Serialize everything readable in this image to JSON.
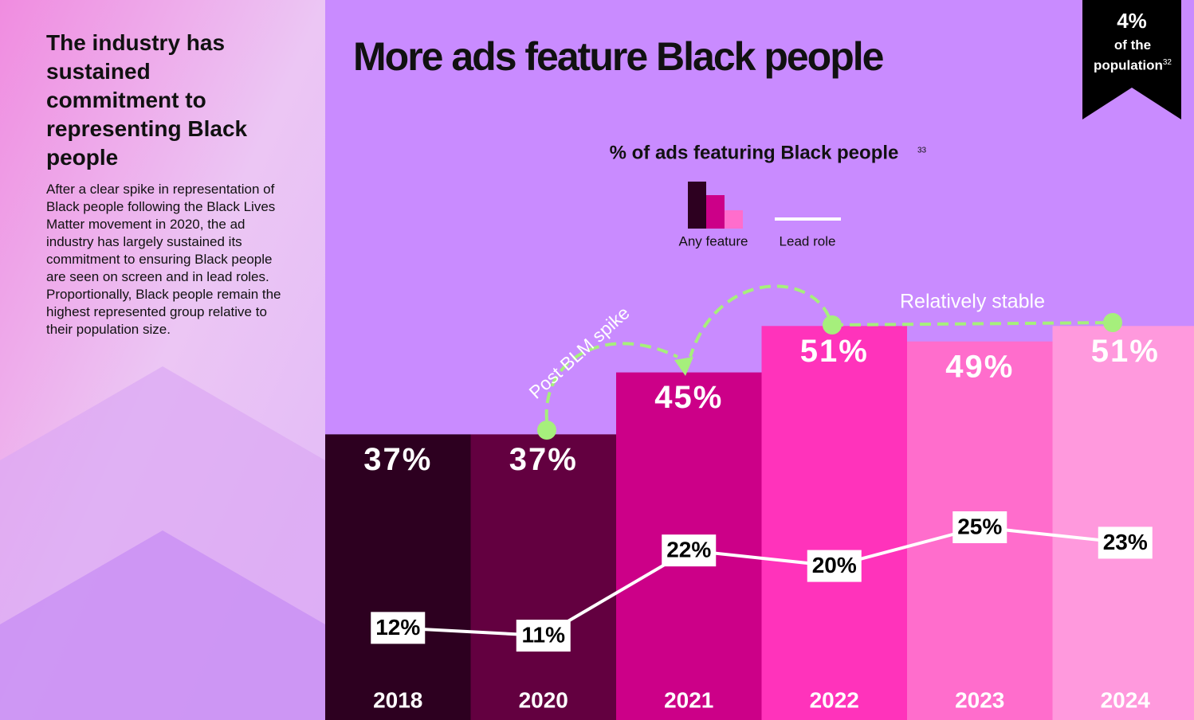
{
  "sidebar": {
    "heading": "The industry has sustained commitment to representing Black people",
    "body": "After a clear spike in representation of Black people following the Black Lives Matter movement in 2020, the ad industry has largely sustained its commitment to ensuring Black people are seen on screen and in lead roles. Proportionally, Black people remain the highest represented group relative to their population size."
  },
  "badge": {
    "value": "4%",
    "label": "of the population",
    "footnote": "32"
  },
  "chart_data": {
    "type": "bar",
    "title": "More ads feature Black people",
    "subtitle": "% of ads featuring Black people",
    "subtitle_footnote": "33",
    "categories": [
      "2018",
      "2020",
      "2021",
      "2022",
      "2023",
      "2024"
    ],
    "series": [
      {
        "name": "Any feature",
        "colors": [
          "#2d0020",
          "#630040",
          "#cc0088",
          "#ff33bb",
          "#ff6dcc",
          "#ff99dd"
        ],
        "values": [
          37,
          37,
          45,
          51,
          49,
          51
        ],
        "value_labels": [
          "37%",
          "37%",
          "45%",
          "51%",
          "49%",
          "51%"
        ]
      },
      {
        "name": "Lead role",
        "type": "line",
        "color": "#ffffff",
        "values": [
          12,
          11,
          22,
          20,
          25,
          23
        ],
        "value_labels": [
          "12%",
          "11%",
          "22%",
          "20%",
          "25%",
          "23%"
        ]
      }
    ],
    "annotations": [
      "Post BLM spike",
      "Relatively stable"
    ]
  }
}
